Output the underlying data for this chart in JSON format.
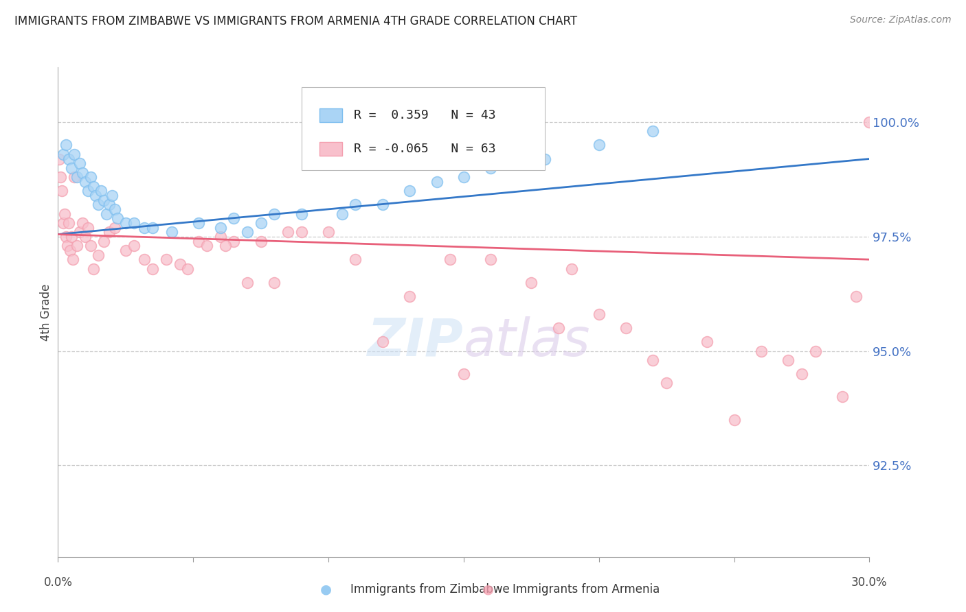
{
  "title": "IMMIGRANTS FROM ZIMBABWE VS IMMIGRANTS FROM ARMENIA 4TH GRADE CORRELATION CHART",
  "source": "Source: ZipAtlas.com",
  "ylabel": "4th Grade",
  "xlim": [
    0.0,
    30.0
  ],
  "ylim": [
    90.5,
    101.2
  ],
  "yticks": [
    92.5,
    95.0,
    97.5,
    100.0
  ],
  "ytick_labels": [
    "92.5%",
    "95.0%",
    "97.5%",
    "100.0%"
  ],
  "legend_r1": "R =  0.359   N = 43",
  "legend_r2": "R = -0.065   N = 63",
  "blue_color": "#7fbfef",
  "pink_color": "#f4a0b0",
  "blue_face": "#aad4f5",
  "pink_face": "#f8c0cc",
  "trend_blue": "#3478c8",
  "trend_pink": "#e8607a",
  "grid_color": "#cccccc",
  "right_axis_color": "#4472c4",
  "zimbabwe_x": [
    0.2,
    0.3,
    0.4,
    0.5,
    0.6,
    0.7,
    0.8,
    0.9,
    1.0,
    1.1,
    1.2,
    1.3,
    1.4,
    1.5,
    1.6,
    1.7,
    1.8,
    1.9,
    2.0,
    2.1,
    2.2,
    2.5,
    2.8,
    3.2,
    3.5,
    4.2,
    5.2,
    6.0,
    6.5,
    7.0,
    7.5,
    8.0,
    9.0,
    10.5,
    11.0,
    12.0,
    13.0,
    14.0,
    15.0,
    16.0,
    18.0,
    20.0,
    22.0
  ],
  "zimbabwe_y": [
    99.3,
    99.5,
    99.2,
    99.0,
    99.3,
    98.8,
    99.1,
    98.9,
    98.7,
    98.5,
    98.8,
    98.6,
    98.4,
    98.2,
    98.5,
    98.3,
    98.0,
    98.2,
    98.4,
    98.1,
    97.9,
    97.8,
    97.8,
    97.7,
    97.7,
    97.6,
    97.8,
    97.7,
    97.9,
    97.6,
    97.8,
    98.0,
    98.0,
    98.0,
    98.2,
    98.2,
    98.5,
    98.7,
    98.8,
    99.0,
    99.2,
    99.5,
    99.8
  ],
  "armenia_x": [
    0.05,
    0.1,
    0.15,
    0.2,
    0.25,
    0.3,
    0.35,
    0.4,
    0.45,
    0.5,
    0.55,
    0.6,
    0.7,
    0.8,
    0.9,
    1.0,
    1.1,
    1.2,
    1.3,
    1.5,
    1.7,
    1.9,
    2.1,
    2.5,
    2.8,
    3.2,
    3.5,
    4.0,
    4.5,
    5.2,
    5.5,
    6.0,
    6.5,
    7.0,
    7.5,
    8.5,
    9.0,
    10.0,
    11.0,
    13.0,
    14.5,
    16.0,
    17.5,
    19.0,
    20.0,
    21.0,
    22.0,
    24.0,
    25.0,
    26.0,
    27.5,
    28.0,
    29.0,
    29.5,
    30.0,
    4.8,
    6.2,
    8.0,
    12.0,
    15.0,
    18.5,
    22.5,
    27.0
  ],
  "armenia_y": [
    99.2,
    98.8,
    98.5,
    97.8,
    98.0,
    97.5,
    97.3,
    97.8,
    97.2,
    97.5,
    97.0,
    98.8,
    97.3,
    97.6,
    97.8,
    97.5,
    97.7,
    97.3,
    96.8,
    97.1,
    97.4,
    97.6,
    97.7,
    97.2,
    97.3,
    97.0,
    96.8,
    97.0,
    96.9,
    97.4,
    97.3,
    97.5,
    97.4,
    96.5,
    97.4,
    97.6,
    97.6,
    97.6,
    97.0,
    96.2,
    97.0,
    97.0,
    96.5,
    96.8,
    95.8,
    95.5,
    94.8,
    95.2,
    93.5,
    95.0,
    94.5,
    95.0,
    94.0,
    96.2,
    100.0,
    96.8,
    97.3,
    96.5,
    95.2,
    94.5,
    95.5,
    94.3,
    94.8
  ]
}
